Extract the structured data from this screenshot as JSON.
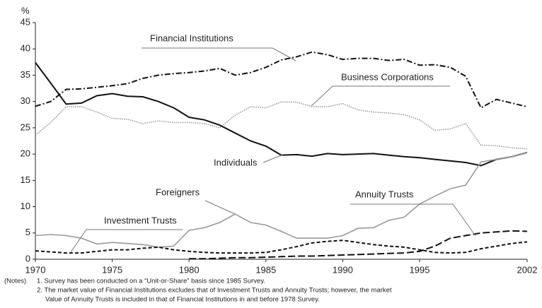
{
  "chart_data": {
    "type": "line",
    "y_label": "%",
    "x": [
      1970,
      1971,
      1972,
      1973,
      1974,
      1975,
      1976,
      1977,
      1978,
      1979,
      1980,
      1981,
      1982,
      1983,
      1984,
      1985,
      1986,
      1987,
      1988,
      1989,
      1990,
      1991,
      1992,
      1993,
      1994,
      1995,
      1996,
      1997,
      1998,
      1999,
      2000,
      2001,
      2002
    ],
    "xlim": [
      1970,
      2002
    ],
    "xticks": [
      1970,
      1975,
      1980,
      1985,
      1990,
      1995,
      2002
    ],
    "ylim": [
      0,
      45
    ],
    "yticks": [
      0,
      5,
      10,
      15,
      20,
      25,
      30,
      35,
      40,
      45
    ],
    "grid": false,
    "series": [
      {
        "name": "Financial Institutions",
        "color": "#111111",
        "dash": "dashdot",
        "values": [
          29.1,
          30.0,
          32.3,
          32.4,
          32.7,
          33.0,
          33.4,
          34.4,
          35.0,
          35.3,
          35.5,
          35.8,
          36.3,
          35.0,
          35.5,
          36.5,
          37.9,
          38.5,
          39.4,
          38.9,
          38.0,
          38.2,
          38.2,
          37.8,
          38.0,
          36.9,
          37.0,
          36.5,
          34.8,
          28.8,
          30.4,
          29.7,
          29.0
        ]
      },
      {
        "name": "Business Corporations",
        "color": "#999999",
        "dash": "dotted",
        "values": [
          23.6,
          26.0,
          29.0,
          29.0,
          28.0,
          26.8,
          26.6,
          25.8,
          26.3,
          26.0,
          26.0,
          25.8,
          25.0,
          27.4,
          29.0,
          28.8,
          29.9,
          29.9,
          29.0,
          29.0,
          29.6,
          28.4,
          28.0,
          27.8,
          27.5,
          26.5,
          24.5,
          24.8,
          25.8,
          21.7,
          21.6,
          21.2,
          21.0
        ]
      },
      {
        "name": "Individuals",
        "color": "#111111",
        "dash": "solid",
        "values": [
          37.4,
          33.5,
          29.5,
          29.7,
          31.1,
          31.5,
          31.0,
          30.9,
          30.0,
          28.8,
          27.0,
          26.5,
          25.5,
          24.0,
          22.5,
          21.5,
          19.8,
          19.9,
          19.6,
          20.1,
          19.9,
          20.0,
          20.1,
          19.8,
          19.5,
          19.3,
          19.0,
          18.7,
          18.4,
          17.8,
          19.0,
          19.5,
          20.3
        ]
      },
      {
        "name": "Foreigners",
        "color": "#999999",
        "dash": "solid",
        "values": [
          4.5,
          4.7,
          4.5,
          4.0,
          2.9,
          3.2,
          3.0,
          2.8,
          2.3,
          2.5,
          5.5,
          6.0,
          7.0,
          8.6,
          7.0,
          6.5,
          5.3,
          4.0,
          4.0,
          4.0,
          4.5,
          5.9,
          6.0,
          7.4,
          8.0,
          10.5,
          12.0,
          13.4,
          14.1,
          18.5,
          19.0,
          19.5,
          20.3
        ]
      },
      {
        "name": "Annuity Trusts",
        "color": "#111111",
        "dash": "longdash",
        "values": [
          null,
          null,
          null,
          null,
          null,
          null,
          null,
          null,
          null,
          null,
          0.1,
          0.1,
          0.2,
          0.3,
          0.3,
          0.4,
          0.5,
          0.6,
          0.6,
          0.7,
          0.8,
          0.9,
          1.0,
          1.1,
          1.2,
          1.5,
          2.5,
          4.0,
          4.5,
          5.0,
          5.2,
          5.4,
          5.3
        ]
      },
      {
        "name": "Investment Trusts",
        "color": "#111111",
        "dash": "shortdash",
        "values": [
          1.6,
          1.4,
          1.2,
          1.2,
          1.5,
          1.8,
          1.8,
          2.1,
          2.3,
          1.8,
          1.5,
          1.3,
          1.2,
          1.2,
          1.2,
          1.3,
          1.8,
          2.4,
          3.1,
          3.4,
          3.6,
          3.2,
          2.8,
          2.5,
          2.3,
          1.8,
          1.3,
          1.2,
          1.3,
          2.0,
          2.5,
          3.0,
          3.3
        ]
      }
    ],
    "notes": [
      "(Notes)",
      "1. Survey has been conducted on a “Unit-or-Share” basis since 1985 Survey.",
      "2. The market value of Financial Institutions excludes that of Investment Trusts and Annuity Trusts; however, the market",
      "Value of Annuity Trusts is included in that of Financial Institutions in and before 1978 Survey."
    ]
  }
}
